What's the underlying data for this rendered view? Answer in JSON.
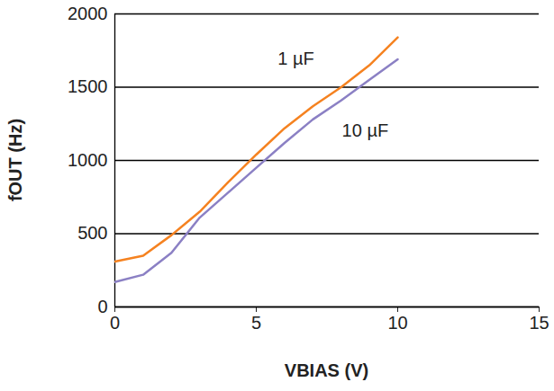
{
  "chart_data": {
    "type": "line",
    "x_label": "VBIAS (V)",
    "y_label": "fOUT (Hz)",
    "x": [
      0,
      1,
      2,
      3,
      4,
      5,
      6,
      7,
      8,
      9,
      10
    ],
    "series": [
      {
        "name": "1 µF",
        "color": "#f58220",
        "values": [
          310,
          350,
          490,
          650,
          850,
          1040,
          1220,
          1370,
          1500,
          1650,
          1840
        ],
        "label": {
          "x": 6.4,
          "y": 1690
        }
      },
      {
        "name": "10 µF",
        "color": "#8b80c4",
        "values": [
          170,
          220,
          370,
          610,
          780,
          950,
          1120,
          1280,
          1410,
          1550,
          1690
        ],
        "label": {
          "x": 8.85,
          "y": 1200
        }
      }
    ],
    "xlim": [
      0,
      15
    ],
    "xticks": [
      0,
      5,
      10,
      15
    ],
    "ylim": [
      0,
      2000
    ],
    "yticks": [
      0,
      500,
      1000,
      1500,
      2000
    ],
    "grid": true
  }
}
